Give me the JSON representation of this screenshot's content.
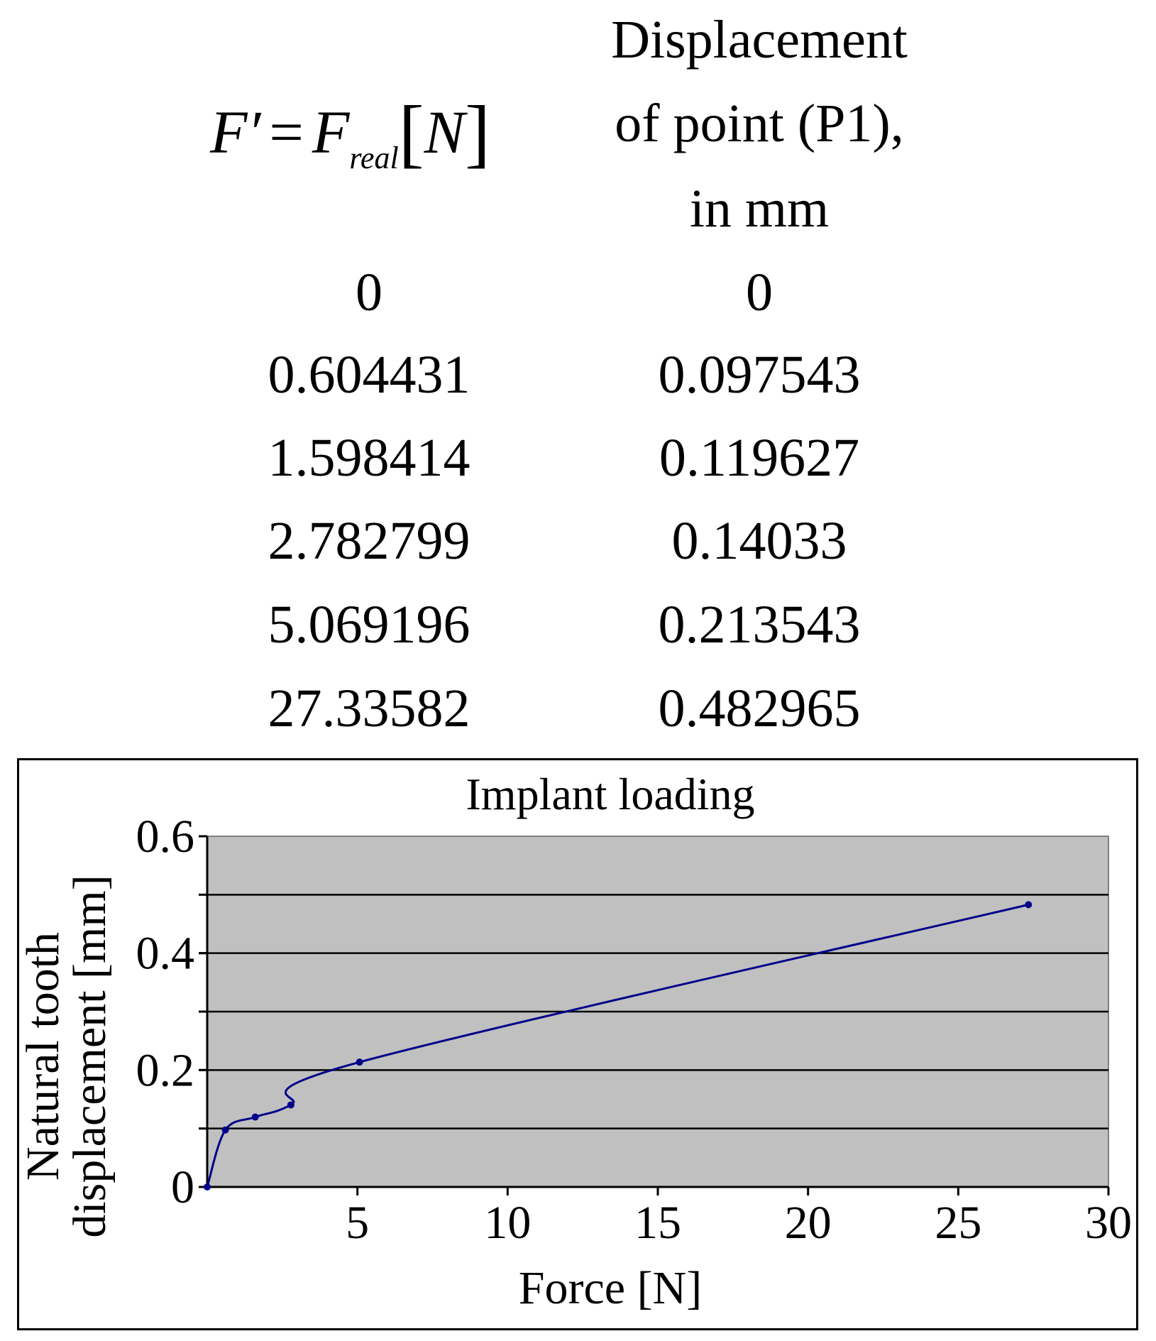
{
  "table": {
    "col1_header": {
      "symbol": "F′",
      "equals": "=",
      "F": "F",
      "sub": "real",
      "unit": "N"
    },
    "col2_header": [
      "Displacement",
      "of point (P1),",
      "in mm"
    ],
    "rows": [
      [
        "0",
        "0"
      ],
      [
        "0.604431",
        "0.097543"
      ],
      [
        "1.598414",
        "0.119627"
      ],
      [
        "2.782799",
        "0.14033"
      ],
      [
        "5.069196",
        "0.213543"
      ],
      [
        "27.33582",
        "0.482965"
      ]
    ]
  },
  "chart_data": {
    "type": "line",
    "title": "Implant loading",
    "xlabel": "Force [N]",
    "ylabel_lines": [
      "Natural tooth",
      "displacement [mm]"
    ],
    "xlim": [
      0,
      30
    ],
    "ylim": [
      0,
      0.6
    ],
    "x_ticks": [
      "5",
      "10",
      "15",
      "20",
      "25",
      "30"
    ],
    "y_ticks": [
      "0",
      "0.2",
      "0.4",
      "0.6"
    ],
    "grid_y": [
      0.1,
      0.2,
      0.3,
      0.4,
      0.5
    ],
    "plot_background": "#c0c0c0",
    "line_color": "#00008b",
    "series": [
      {
        "x": [
          0,
          0.604431,
          1.598414,
          2.782799,
          5.069196,
          27.33582
        ],
        "y": [
          0,
          0.097543,
          0.119627,
          0.14033,
          0.213543,
          0.482965
        ]
      }
    ]
  }
}
